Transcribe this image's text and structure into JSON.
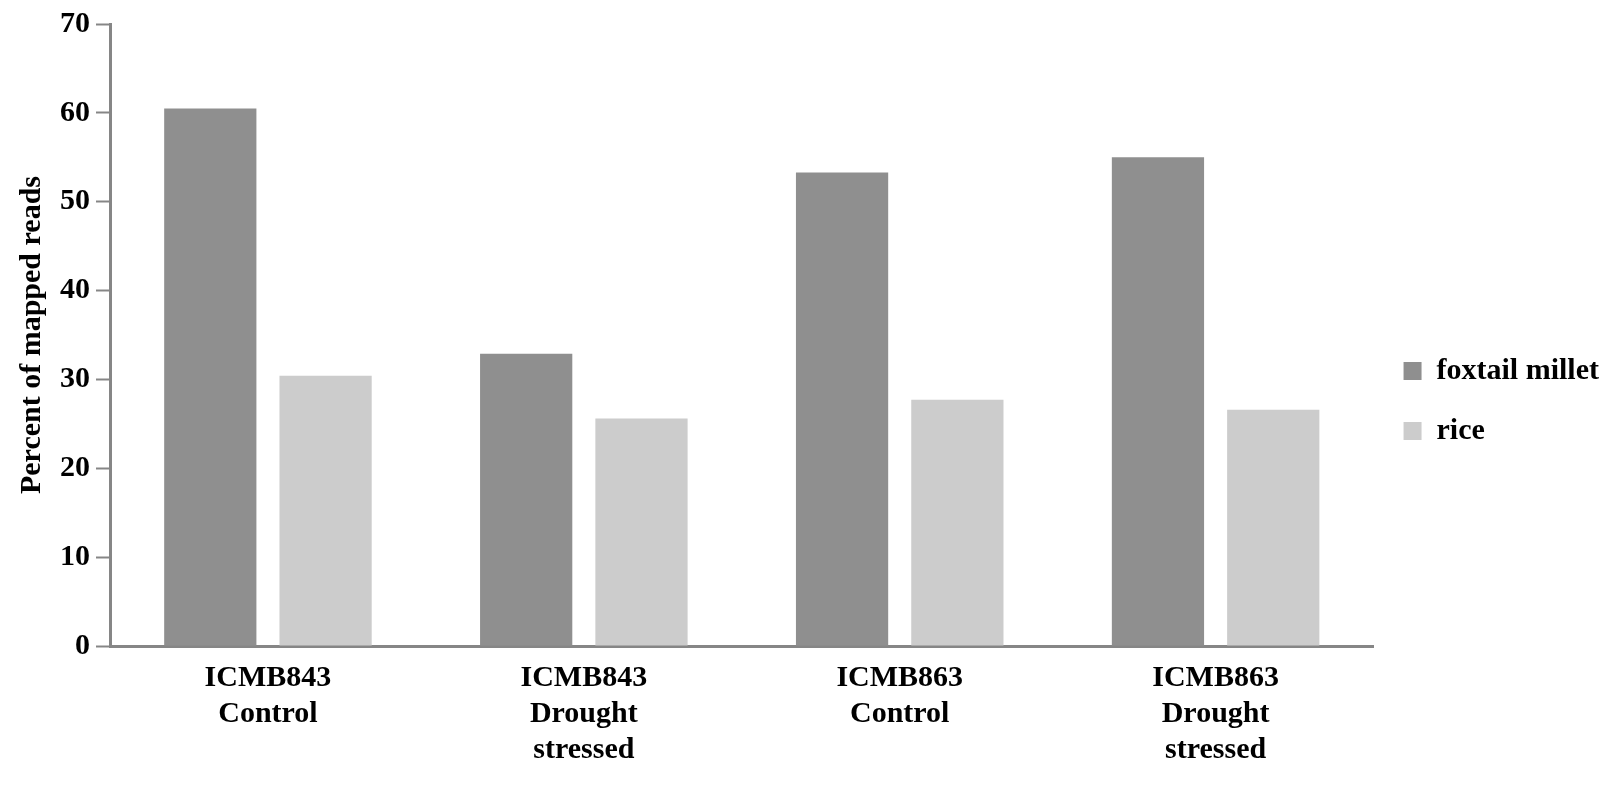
{
  "chart_data": {
    "type": "bar",
    "ylabel": "Percent of mapped reads",
    "categories": [
      "ICMB843\nControl",
      "ICMB843\nDrought\nstressed",
      "ICMB863\nControl",
      "ICMB863\nDrought\nstressed"
    ],
    "series": [
      {
        "name": "foxtail millet",
        "color": "#8f8f8f",
        "values": [
          60.5,
          32.9,
          53.3,
          55.0
        ]
      },
      {
        "name": "rice",
        "color": "#cccccc",
        "values": [
          30.4,
          25.6,
          27.7,
          26.6
        ]
      }
    ],
    "ylim": [
      0,
      70
    ],
    "yticks": [
      0,
      10,
      20,
      30,
      40,
      50,
      60,
      70
    ],
    "grid": false,
    "legend": "right"
  }
}
